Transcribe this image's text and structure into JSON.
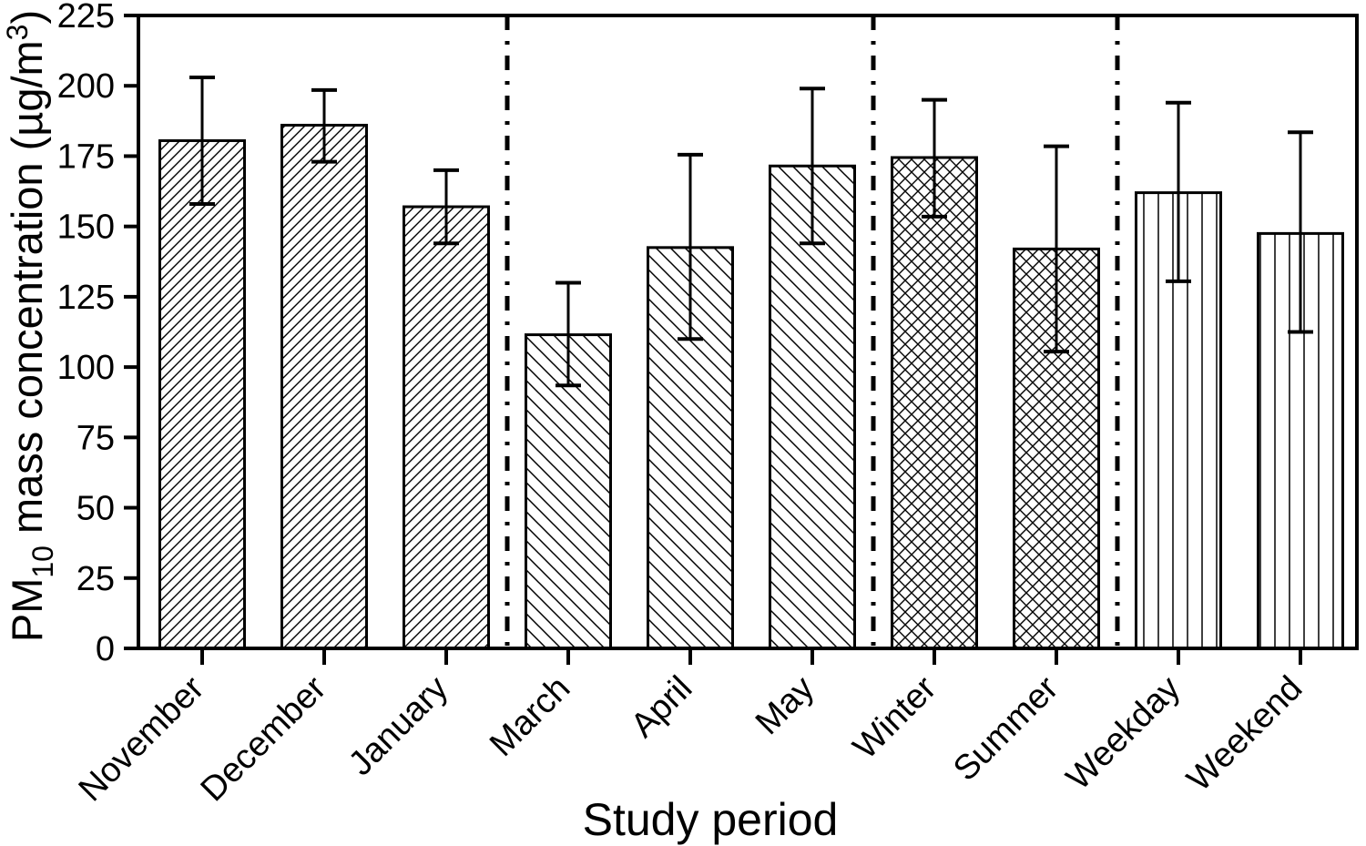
{
  "figure": {
    "background": "#ffffff",
    "axis_color": "#000000"
  },
  "chart_data": {
    "type": "bar",
    "title": "",
    "xlabel": "Study period",
    "ylabel": "PM10 mass concentration (µg/m3)",
    "ylabel_parts": [
      {
        "text": "PM"
      },
      {
        "text": "10",
        "style": "sub"
      },
      {
        "text": " mass concentration (µg/m"
      },
      {
        "text": "3",
        "style": "sup"
      },
      {
        "text": ")"
      }
    ],
    "ylim": [
      0,
      225
    ],
    "yticks": [
      0,
      25,
      50,
      75,
      100,
      125,
      150,
      175,
      200,
      225
    ],
    "grid": false,
    "legend": false,
    "categories": [
      "November",
      "December",
      "January",
      "March",
      "April",
      "May",
      "Winter",
      "Summer",
      "Weekday",
      "Weekend"
    ],
    "values": [
      180.5,
      186,
      157,
      111.5,
      142.5,
      171.5,
      174.5,
      142,
      162,
      147.5
    ],
    "error_low": [
      158,
      173,
      144,
      93.5,
      110,
      144,
      153.5,
      105.5,
      130.5,
      112.5
    ],
    "error_high": [
      203,
      198.5,
      170,
      130,
      175.5,
      199,
      195,
      178.5,
      194,
      183.5
    ],
    "hatches": [
      "forward-diagonal",
      "forward-diagonal",
      "forward-diagonal",
      "back-diagonal",
      "back-diagonal",
      "back-diagonal",
      "crosshatch",
      "crosshatch",
      "vertical",
      "vertical"
    ],
    "separators_after": [
      "January",
      "May",
      "Summer"
    ],
    "bar_fill": "#ffffff",
    "bar_stroke": "#000000"
  }
}
